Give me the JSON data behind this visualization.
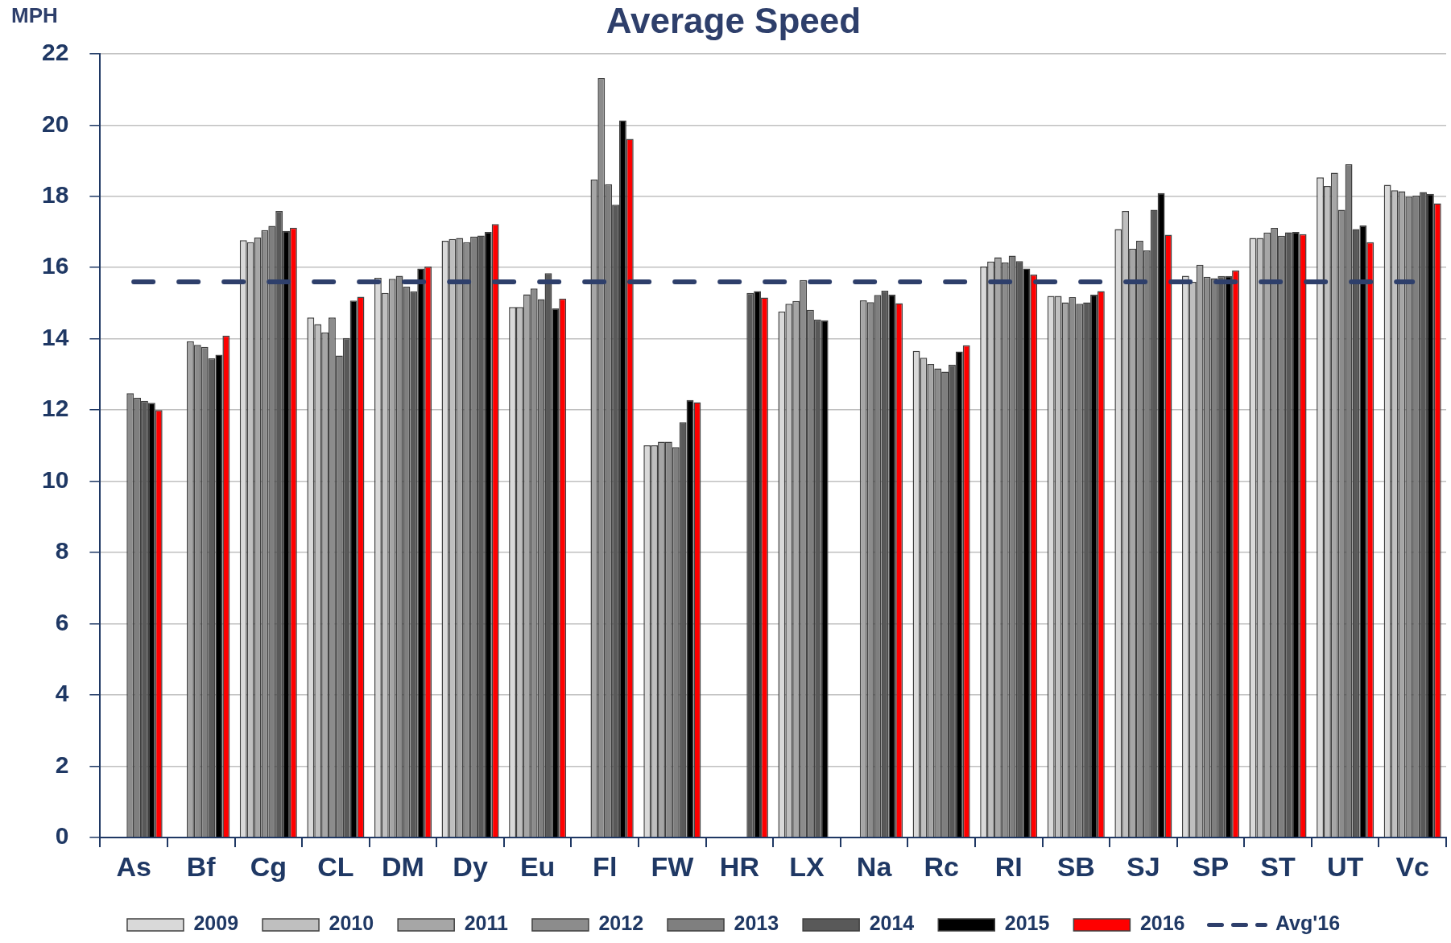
{
  "chart_data": {
    "type": "bar",
    "title": "Average Speed",
    "ylabel": "MPH",
    "categories": [
      "As",
      "Bf",
      "Cg",
      "CL",
      "DM",
      "Dy",
      "Eu",
      "Fl",
      "FW",
      "HR",
      "LX",
      "Na",
      "Rc",
      "RI",
      "SB",
      "SJ",
      "SP",
      "ST",
      "UT",
      "Vc"
    ],
    "series": [
      {
        "name": "2009",
        "color": "#d9d9d9",
        "values": [
          null,
          null,
          16.77,
          14.6,
          15.71,
          16.75,
          14.89,
          null,
          11.01,
          null,
          14.77,
          null,
          13.66,
          16.03,
          15.2,
          17.08,
          15.77,
          16.83,
          18.53,
          18.32
        ]
      },
      {
        "name": "2010",
        "color": "#bfbfbf",
        "values": [
          null,
          null,
          16.71,
          14.41,
          15.29,
          16.8,
          14.89,
          null,
          11.01,
          null,
          14.98,
          null,
          13.47,
          16.17,
          15.2,
          17.59,
          15.6,
          16.83,
          18.29,
          18.17
        ]
      },
      {
        "name": "2011",
        "color": "#a6a6a6",
        "values": [
          null,
          13.93,
          16.84,
          14.18,
          15.68,
          16.83,
          15.25,
          18.47,
          11.11,
          null,
          15.06,
          15.08,
          13.29,
          16.29,
          15.02,
          16.53,
          16.08,
          16.98,
          18.66,
          18.14
        ]
      },
      {
        "name": "2012",
        "color": "#8c8c8c",
        "values": [
          12.47,
          13.83,
          17.05,
          14.6,
          15.77,
          16.71,
          15.41,
          21.32,
          11.11,
          null,
          15.65,
          15.03,
          13.17,
          16.14,
          15.17,
          16.75,
          15.74,
          17.11,
          17.62,
          17.99
        ]
      },
      {
        "name": "2013",
        "color": "#7f7f7f",
        "values": [
          12.34,
          13.77,
          17.17,
          13.53,
          15.46,
          16.87,
          15.11,
          18.34,
          10.96,
          null,
          14.81,
          15.23,
          13.08,
          16.33,
          14.98,
          16.48,
          15.7,
          16.89,
          18.9,
          18.02
        ]
      },
      {
        "name": "2014",
        "color": "#595959",
        "values": [
          12.26,
          13.45,
          17.59,
          14.02,
          15.33,
          16.9,
          15.84,
          17.76,
          11.66,
          15.29,
          14.54,
          15.35,
          13.27,
          16.18,
          15.02,
          17.62,
          15.76,
          16.99,
          17.08,
          18.12
        ]
      },
      {
        "name": "2015",
        "color": "#000000",
        "values": [
          12.2,
          13.55,
          17.03,
          15.07,
          15.97,
          17.0,
          14.85,
          20.13,
          12.28,
          15.34,
          14.52,
          15.24,
          13.64,
          15.97,
          15.24,
          18.09,
          15.76,
          17.0,
          17.18,
          18.07
        ]
      },
      {
        "name": "2016",
        "color": "#ff0000",
        "values": [
          12.0,
          14.09,
          17.12,
          15.18,
          16.03,
          17.22,
          15.13,
          19.61,
          12.22,
          15.16,
          null,
          15.0,
          13.82,
          15.8,
          15.34,
          16.92,
          15.92,
          16.94,
          16.71,
          17.8
        ]
      },
      {
        "name": "Avg'16",
        "type": "line",
        "line_style": "dashed",
        "color": "#2e3f6b",
        "values": [
          15.6,
          15.6,
          15.6,
          15.6,
          15.6,
          15.6,
          15.6,
          15.6,
          15.6,
          15.6,
          15.6,
          15.6,
          15.6,
          15.6,
          15.6,
          15.6,
          15.6,
          15.6,
          15.6,
          15.6
        ]
      }
    ],
    "ylim": [
      0,
      22
    ],
    "yticks": [
      0,
      2,
      4,
      6,
      8,
      10,
      12,
      14,
      16,
      18,
      20,
      22
    ],
    "grid": "y",
    "legend": "bottom"
  }
}
